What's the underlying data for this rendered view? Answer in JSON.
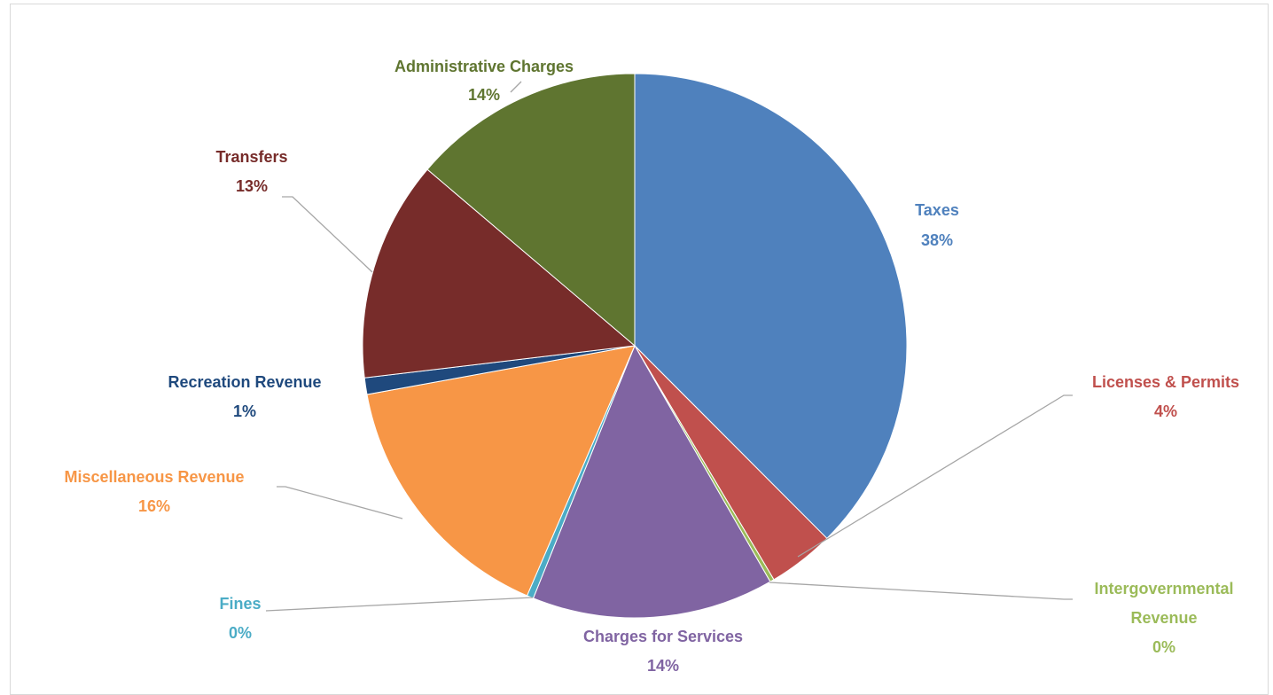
{
  "chart_data": {
    "type": "pie",
    "title": "",
    "legend": "none",
    "slices": [
      {
        "name": "Taxes",
        "value": 38.1,
        "label": "38%",
        "color": "#4f81bd"
      },
      {
        "name": "Licenses & Permits",
        "value": 4.0,
        "label": "4%",
        "color": "#c0504d"
      },
      {
        "name": "Intergovernmental Revenue",
        "value": 0.25,
        "label": "0%",
        "color": "#9bbb59"
      },
      {
        "name": "Charges for Services",
        "value": 14.6,
        "label": "14%",
        "color": "#8064a2"
      },
      {
        "name": "Fines",
        "value": 0.4,
        "label": "0%",
        "color": "#4bacc6"
      },
      {
        "name": "Miscellaneous Revenue",
        "value": 15.9,
        "label": "16%",
        "color": "#f79646"
      },
      {
        "name": "Recreation Revenue",
        "value": 1.0,
        "label": "1%",
        "color": "#1f497d"
      },
      {
        "name": "Transfers",
        "value": 13.3,
        "label": "13%",
        "color": "#772c2a"
      },
      {
        "name": "Administrative Charges",
        "value": 14.0,
        "label": "14%",
        "color": "#5f7530"
      }
    ]
  }
}
